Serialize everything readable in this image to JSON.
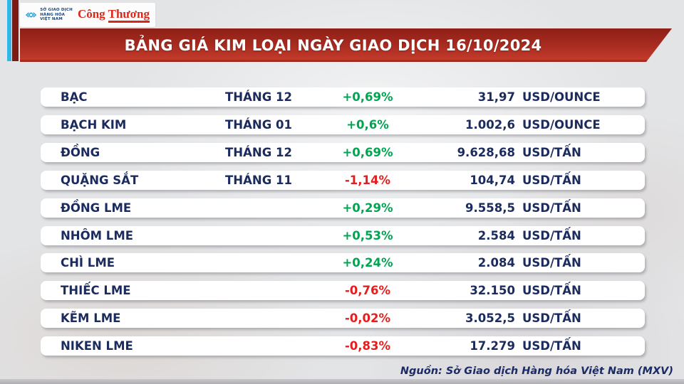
{
  "header": {
    "mxv_logo_lines": [
      "SỞ GIAO DỊCH",
      "HÀNG HÓA",
      "VIỆT NAM"
    ],
    "congthuong_logo": "Công Thương"
  },
  "colors": {
    "up_green": "#00a551",
    "down_red": "#e41e1e",
    "text_navy": "#1b2b5e",
    "banner_red_dark": "#8e1f17",
    "banner_red_bright": "#c23a2a",
    "accent_cyan": "#35b6e9",
    "accent_maroon": "#7c1b15"
  },
  "chart_data": {
    "type": "table",
    "title": "BẢNG GIÁ KIM LOẠI NGÀY GIAO DỊCH 16/10/2024",
    "rows": [
      {
        "name": "BẠC",
        "month": "THÁNG 12",
        "change": "+0,69%",
        "price": "31,97",
        "unit": "USD/OUNCE"
      },
      {
        "name": "BẠCH KIM",
        "month": "THÁNG 01",
        "change": "+0,6%",
        "price": "1.002,6",
        "unit": "USD/OUNCE"
      },
      {
        "name": "ĐỒNG",
        "month": "THÁNG 12",
        "change": "+0,69%",
        "price": "9.628,68",
        "unit": "USD/TẤN"
      },
      {
        "name": "QUẶNG SẮT",
        "month": "THÁNG 11",
        "change": "-1,14%",
        "price": "104,74",
        "unit": "USD/TẤN"
      },
      {
        "name": "ĐỒNG LME",
        "month": "",
        "change": "+0,29%",
        "price": "9.558,5",
        "unit": "USD/TẤN"
      },
      {
        "name": "NHÔM LME",
        "month": "",
        "change": "+0,53%",
        "price": "2.584",
        "unit": "USD/TẤN"
      },
      {
        "name": "CHÌ LME",
        "month": "",
        "change": "+0,24%",
        "price": "2.084",
        "unit": "USD/TẤN"
      },
      {
        "name": "THIẾC LME",
        "month": "",
        "change": "-0,76%",
        "price": "32.150",
        "unit": "USD/TẤN"
      },
      {
        "name": "KẼM LME",
        "month": "",
        "change": "-0,02%",
        "price": "3.052,5",
        "unit": "USD/TẤN"
      },
      {
        "name": "NIKEN LME",
        "month": "",
        "change": "-0,83%",
        "price": "17.279",
        "unit": "USD/TẤN"
      }
    ],
    "source": "Nguồn: Sở Giao dịch Hàng hóa Việt Nam (MXV)"
  }
}
